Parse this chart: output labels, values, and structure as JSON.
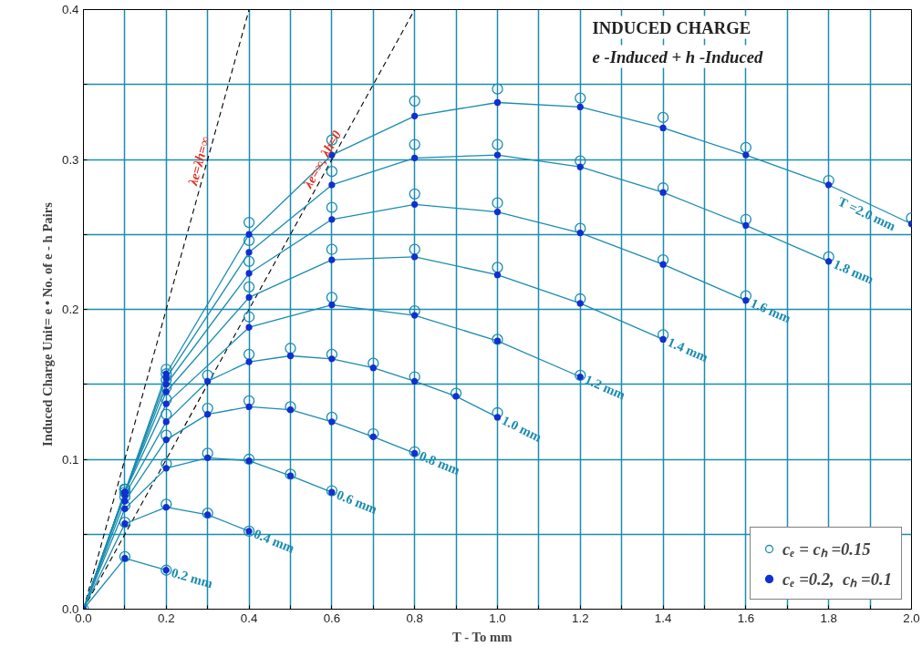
{
  "chart_data": {
    "type": "line",
    "title": "INDUCED CHARGE",
    "subtitle": "e -Induced  + h -Induced",
    "xlabel": "T - To          mm",
    "ylabel": "Induced Charge          Unit= e • No. of e - h Pairs",
    "xlim": [
      0,
      2
    ],
    "ylim": [
      0,
      0.4
    ],
    "xticks": [
      {
        "value": 0,
        "label": "0.0"
      },
      {
        "value": 0.1,
        "label": null
      },
      0.2,
      {
        "value": 0.3,
        "label": null
      },
      0.4,
      {
        "value": 0.5,
        "label": null
      },
      0.6,
      {
        "value": 0.7,
        "label": null
      },
      0.8,
      {
        "value": 0.9,
        "label": null
      },
      {
        "value": 1.0,
        "label": "1.0"
      },
      {
        "value": 1.1,
        "label": null
      },
      1.2,
      {
        "value": 1.3,
        "label": null
      },
      1.4,
      {
        "value": 1.5,
        "label": null
      },
      1.6,
      {
        "value": 1.7,
        "label": null
      },
      1.8,
      {
        "value": 1.9,
        "label": null
      },
      {
        "value": 2.0,
        "label": "2.0"
      }
    ],
    "yticks": [
      {
        "value": 0,
        "label": "0.0"
      },
      {
        "value": 0.05,
        "label": null
      },
      0.1,
      {
        "value": 0.15,
        "label": null
      },
      0.2,
      {
        "value": 0.25,
        "label": null
      },
      0.3,
      {
        "value": 0.35,
        "label": null
      },
      0.4
    ],
    "grid": true,
    "legend": "bottom right",
    "line_style": "solid",
    "series": [
      {
        "name": "λe=λh=∞",
        "type": "line",
        "line_style": "dashed",
        "color": "#000000",
        "x": [
          0,
          0.4
        ],
        "values": [
          0,
          0.4
        ]
      },
      {
        "name": "λe=∞, λh=0",
        "type": "line",
        "line_style": "dashed",
        "color": "#000000",
        "x": [
          0,
          0.8
        ],
        "values": [
          0,
          0.4
        ]
      },
      {
        "name": "0.2 mm",
        "color": "#1a8cb0",
        "x": [
          0,
          0.1,
          0.2
        ],
        "values": [
          0,
          0.034,
          0.026
        ]
      },
      {
        "name": "0.4 mm",
        "color": "#1a8cb0",
        "x": [
          0,
          0.1,
          0.2,
          0.3,
          0.4
        ],
        "values": [
          0,
          0.057,
          0.068,
          0.063,
          0.052
        ]
      },
      {
        "name": "0.6 mm",
        "color": "#1a8cb0",
        "x": [
          0,
          0.1,
          0.2,
          0.3,
          0.4,
          0.5,
          0.6
        ],
        "values": [
          0,
          0.067,
          0.094,
          0.101,
          0.099,
          0.089,
          0.078
        ]
      },
      {
        "name": "0.8 mm",
        "color": "#1a8cb0",
        "x": [
          0,
          0.1,
          0.2,
          0.3,
          0.4,
          0.5,
          0.6,
          0.7,
          0.8
        ],
        "values": [
          0,
          0.072,
          0.113,
          0.13,
          0.135,
          0.133,
          0.125,
          0.115,
          0.104
        ]
      },
      {
        "name": "1.0 mm",
        "color": "#1a8cb0",
        "x": [
          0,
          0.1,
          0.2,
          0.3,
          0.4,
          0.5,
          0.6,
          0.7,
          0.8,
          0.9,
          1.0
        ],
        "values": [
          0,
          0.076,
          0.125,
          0.152,
          0.165,
          0.169,
          0.167,
          0.161,
          0.152,
          0.142,
          0.128
        ]
      },
      {
        "name": "1.2 mm",
        "color": "#1a8cb0",
        "x": [
          0,
          0.1,
          0.2,
          0.4,
          0.6,
          0.8,
          1.0,
          1.2
        ],
        "values": [
          0,
          0.078,
          0.137,
          0.188,
          0.203,
          0.196,
          0.179,
          0.155
        ]
      },
      {
        "name": "1.4 mm",
        "color": "#1a8cb0",
        "x": [
          0,
          0.1,
          0.2,
          0.4,
          0.6,
          0.8,
          1.0,
          1.2,
          1.4
        ],
        "values": [
          0,
          0.078,
          0.145,
          0.208,
          0.233,
          0.235,
          0.223,
          0.204,
          0.18
        ]
      },
      {
        "name": "1.6 mm",
        "color": "#1a8cb0",
        "x": [
          0,
          0.1,
          0.2,
          0.4,
          0.6,
          0.8,
          1.0,
          1.2,
          1.4,
          1.6
        ],
        "values": [
          0,
          0.078,
          0.15,
          0.224,
          0.26,
          0.27,
          0.265,
          0.251,
          0.23,
          0.206
        ]
      },
      {
        "name": "1.8 mm",
        "color": "#1a8cb0",
        "x": [
          0,
          0.1,
          0.2,
          0.4,
          0.6,
          0.8,
          1.0,
          1.2,
          1.4,
          1.6,
          1.8
        ],
        "values": [
          0,
          0.078,
          0.154,
          0.238,
          0.283,
          0.301,
          0.303,
          0.295,
          0.278,
          0.256,
          0.232
        ]
      },
      {
        "name": "T =2.0 mm",
        "color": "#1a8cb0",
        "x": [
          0,
          0.1,
          0.2,
          0.4,
          0.6,
          0.8,
          1.0,
          1.2,
          1.4,
          1.6,
          1.8,
          2.0
        ],
        "values": [
          0,
          0.078,
          0.157,
          0.25,
          0.303,
          0.329,
          0.338,
          0.335,
          0.321,
          0.303,
          0.283,
          0.257
        ]
      },
      {
        "name": "cₑ = cₕ =0.15",
        "type": "scatter",
        "marker": "circle_open",
        "color": "#1a8cb0",
        "x": [
          0,
          0.1,
          0.2,
          0.1,
          0.2,
          0.3,
          0.4,
          0.1,
          0.2,
          0.3,
          0.4,
          0.5,
          0.6,
          0.1,
          0.2,
          0.3,
          0.4,
          0.5,
          0.6,
          0.7,
          0.8,
          0.1,
          0.2,
          0.3,
          0.4,
          0.5,
          0.6,
          0.7,
          0.8,
          0.9,
          1.0,
          0.1,
          0.2,
          0.4,
          0.6,
          0.8,
          1.0,
          1.2,
          0.1,
          0.2,
          0.4,
          0.6,
          0.8,
          1.0,
          1.2,
          1.4,
          0.1,
          0.2,
          0.4,
          0.6,
          0.8,
          1.0,
          1.2,
          1.4,
          1.6,
          0.1,
          0.2,
          0.4,
          0.6,
          0.8,
          1.0,
          1.2,
          1.4,
          1.6,
          1.8,
          0.1,
          0.2,
          0.4,
          0.6,
          0.8,
          1.0,
          1.2,
          1.4,
          1.6,
          1.8,
          2.0
        ],
        "values": [
          0,
          0.035,
          0.026,
          0.058,
          0.07,
          0.064,
          0.052,
          0.069,
          0.097,
          0.104,
          0.1,
          0.09,
          0.079,
          0.075,
          0.116,
          0.134,
          0.139,
          0.135,
          0.128,
          0.117,
          0.105,
          0.078,
          0.13,
          0.156,
          0.17,
          0.174,
          0.17,
          0.164,
          0.155,
          0.144,
          0.131,
          0.08,
          0.14,
          0.195,
          0.208,
          0.199,
          0.18,
          0.156,
          0.08,
          0.148,
          0.215,
          0.24,
          0.24,
          0.228,
          0.207,
          0.183,
          0.08,
          0.153,
          0.232,
          0.268,
          0.277,
          0.271,
          0.254,
          0.233,
          0.209,
          0.08,
          0.157,
          0.246,
          0.292,
          0.31,
          0.31,
          0.299,
          0.281,
          0.26,
          0.235,
          0.08,
          0.16,
          0.258,
          0.313,
          0.339,
          0.347,
          0.341,
          0.328,
          0.308,
          0.286,
          0.261
        ]
      },
      {
        "name": "cₑ =0.2,  cₕ =0.1",
        "type": "scatter",
        "marker": "circle",
        "color": "#1030d0",
        "x": [
          0,
          0.1,
          0.2,
          0.1,
          0.2,
          0.3,
          0.4,
          0.1,
          0.2,
          0.3,
          0.4,
          0.5,
          0.6,
          0.1,
          0.2,
          0.3,
          0.4,
          0.5,
          0.6,
          0.7,
          0.8,
          0.1,
          0.2,
          0.3,
          0.4,
          0.5,
          0.6,
          0.7,
          0.8,
          0.9,
          1.0,
          0.1,
          0.2,
          0.4,
          0.6,
          0.8,
          1.0,
          1.2,
          0.1,
          0.2,
          0.4,
          0.6,
          0.8,
          1.0,
          1.2,
          1.4,
          0.1,
          0.2,
          0.4,
          0.6,
          0.8,
          1.0,
          1.2,
          1.4,
          1.6,
          0.1,
          0.2,
          0.4,
          0.6,
          0.8,
          1.0,
          1.2,
          1.4,
          1.6,
          1.8,
          0.1,
          0.2,
          0.4,
          0.6,
          0.8,
          1.0,
          1.2,
          1.4,
          1.6,
          1.8,
          2.0
        ],
        "values": [
          0,
          0.034,
          0.026,
          0.057,
          0.068,
          0.063,
          0.052,
          0.067,
          0.094,
          0.101,
          0.099,
          0.089,
          0.078,
          0.072,
          0.113,
          0.13,
          0.135,
          0.133,
          0.125,
          0.115,
          0.104,
          0.076,
          0.125,
          0.152,
          0.165,
          0.169,
          0.167,
          0.161,
          0.152,
          0.142,
          0.128,
          0.078,
          0.137,
          0.188,
          0.203,
          0.196,
          0.179,
          0.155,
          0.078,
          0.145,
          0.208,
          0.233,
          0.235,
          0.223,
          0.204,
          0.18,
          0.078,
          0.15,
          0.224,
          0.26,
          0.27,
          0.265,
          0.251,
          0.23,
          0.206,
          0.078,
          0.154,
          0.238,
          0.283,
          0.301,
          0.303,
          0.295,
          0.278,
          0.256,
          0.232,
          0.078,
          0.157,
          0.25,
          0.303,
          0.329,
          0.338,
          0.335,
          0.321,
          0.303,
          0.283,
          0.257
        ]
      }
    ]
  }
}
